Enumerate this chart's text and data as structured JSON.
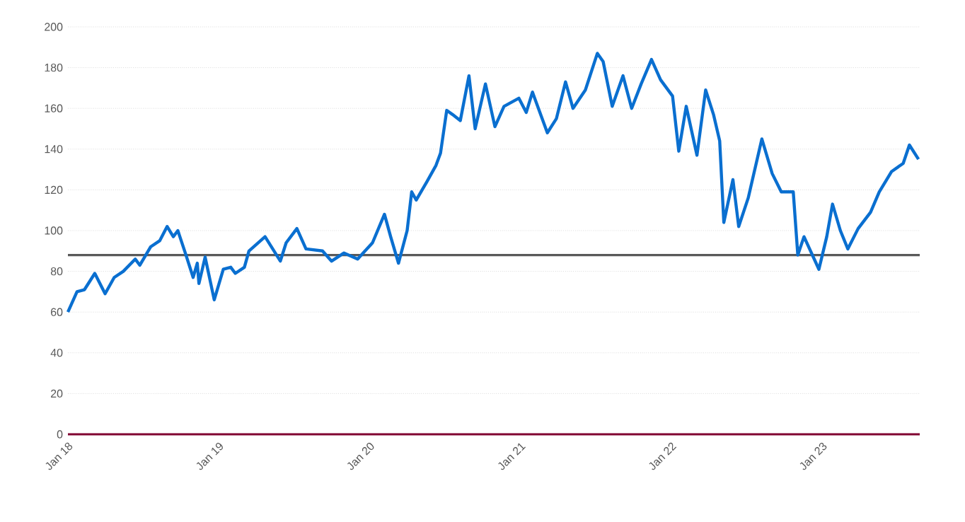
{
  "chart_data": {
    "type": "line",
    "x": [
      "2018-01-01",
      "2018-01-23",
      "2018-02-10",
      "2018-03-07",
      "2018-04-01",
      "2018-04-23",
      "2018-05-15",
      "2018-06-13",
      "2018-06-24",
      "2018-07-20",
      "2018-08-11",
      "2018-08-29",
      "2018-09-13",
      "2018-09-24",
      "2018-10-12",
      "2018-10-31",
      "2018-11-10",
      "2018-11-14",
      "2018-11-29",
      "2018-12-21",
      "2019-01-12",
      "2019-01-30",
      "2019-02-10",
      "2019-03-04",
      "2019-03-15",
      "2019-04-23",
      "2019-05-30",
      "2019-06-13",
      "2019-07-09",
      "2019-07-31",
      "2019-09-09",
      "2019-10-01",
      "2019-10-31",
      "2019-12-03",
      "2020-01-08",
      "2020-02-06",
      "2020-02-21",
      "2020-03-11",
      "2020-04-01",
      "2020-04-12",
      "2020-04-23",
      "2020-05-19",
      "2020-06-10",
      "2020-06-21",
      "2020-07-06",
      "2020-07-20",
      "2020-08-08",
      "2020-08-29",
      "2020-09-13",
      "2020-10-08",
      "2020-10-31",
      "2020-11-22",
      "2020-12-28",
      "2021-01-15",
      "2021-01-30",
      "2021-03-07",
      "2021-03-29",
      "2021-04-20",
      "2021-05-08",
      "2021-06-07",
      "2021-07-06",
      "2021-07-20",
      "2021-08-11",
      "2021-09-06",
      "2021-09-27",
      "2021-10-20",
      "2021-11-14",
      "2021-12-06",
      "2022-01-04",
      "2022-01-19",
      "2022-02-06",
      "2022-03-04",
      "2022-03-25",
      "2022-04-13",
      "2022-04-28",
      "2022-05-08",
      "2022-05-30",
      "2022-06-13",
      "2022-07-06",
      "2022-08-08",
      "2022-09-02",
      "2022-09-24",
      "2022-10-23",
      "2022-11-03",
      "2022-11-18",
      "2022-12-24",
      "2023-01-12",
      "2023-01-26",
      "2023-02-14",
      "2023-03-04",
      "2023-03-29",
      "2023-04-28",
      "2023-05-19",
      "2023-06-18",
      "2023-07-16",
      "2023-07-31",
      "2023-08-22"
    ],
    "series": [
      {
        "color": "#0a6fd0",
        "values": [
          60,
          70,
          71,
          79,
          69,
          77,
          80,
          86,
          83,
          92,
          95,
          102,
          97,
          100,
          89,
          77,
          84,
          74,
          87,
          66,
          81,
          82,
          79,
          82,
          90,
          97,
          85,
          94,
          101,
          91,
          90,
          85,
          89,
          86,
          94,
          108,
          97,
          84,
          100,
          119,
          115,
          124,
          132,
          138,
          159,
          157,
          154,
          176,
          150,
          172,
          151,
          161,
          165,
          158,
          168,
          148,
          155,
          173,
          160,
          169,
          187,
          183,
          161,
          176,
          160,
          172,
          184,
          174,
          166,
          139,
          161,
          137,
          169,
          157,
          144,
          104,
          125,
          102,
          116,
          145,
          128,
          119,
          119,
          88,
          97,
          81,
          97,
          113,
          100,
          91,
          101,
          109,
          119,
          129,
          133,
          142,
          135
        ]
      }
    ],
    "xlim": [
      "2018-01-01",
      "2023-08-25"
    ],
    "xticks": [
      {
        "value": "2018-01-01",
        "label": "Jan 18"
      },
      {
        "value": "2019-01-01",
        "label": "Jan 19"
      },
      {
        "value": "2020-01-01",
        "label": "Jan 20"
      },
      {
        "value": "2021-01-01",
        "label": "Jan 21"
      },
      {
        "value": "2022-01-01",
        "label": "Jan 22"
      },
      {
        "value": "2023-01-01",
        "label": "Jan 23"
      }
    ],
    "ylim": [
      0,
      200
    ],
    "yticks": [
      0,
      20,
      40,
      60,
      80,
      100,
      120,
      140,
      160,
      180,
      200
    ],
    "grid": "y",
    "ref_lines": [
      {
        "axis": "y",
        "value": 88,
        "color": "#595959"
      }
    ]
  }
}
